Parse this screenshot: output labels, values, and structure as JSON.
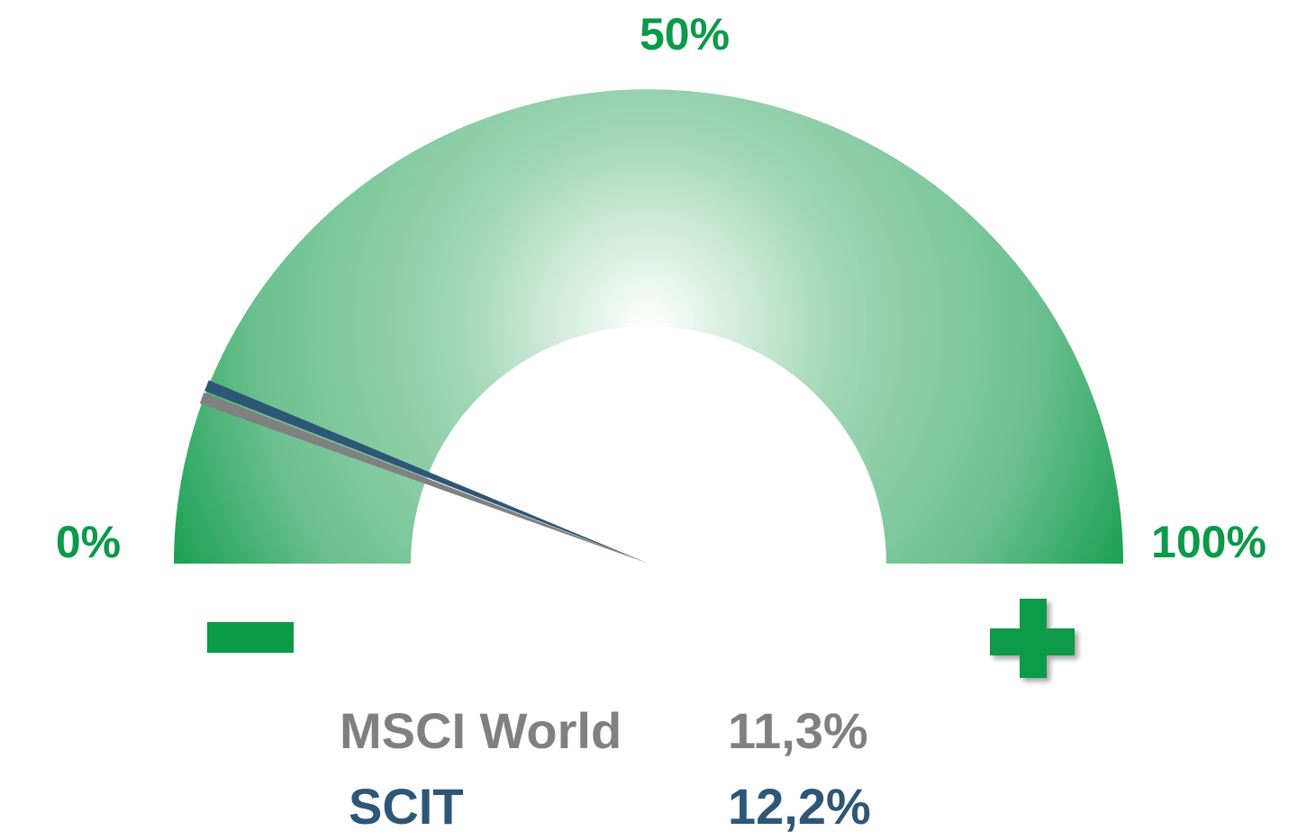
{
  "chart_data": {
    "type": "gauge",
    "range": [
      0,
      100
    ],
    "ticks": [
      {
        "value": 0,
        "label": "0%"
      },
      {
        "value": 50,
        "label": "50%"
      },
      {
        "value": 100,
        "label": "100%"
      }
    ],
    "color": "#0a9a48",
    "series": [
      {
        "name": "MSCI World",
        "color": "#808080",
        "values": [
          11.3
        ],
        "value_labels": [
          "11,3%"
        ]
      },
      {
        "name": "SCIT",
        "color": "#2e5677",
        "values": [
          12.2
        ],
        "value_labels": [
          "12,2%"
        ]
      }
    ]
  }
}
